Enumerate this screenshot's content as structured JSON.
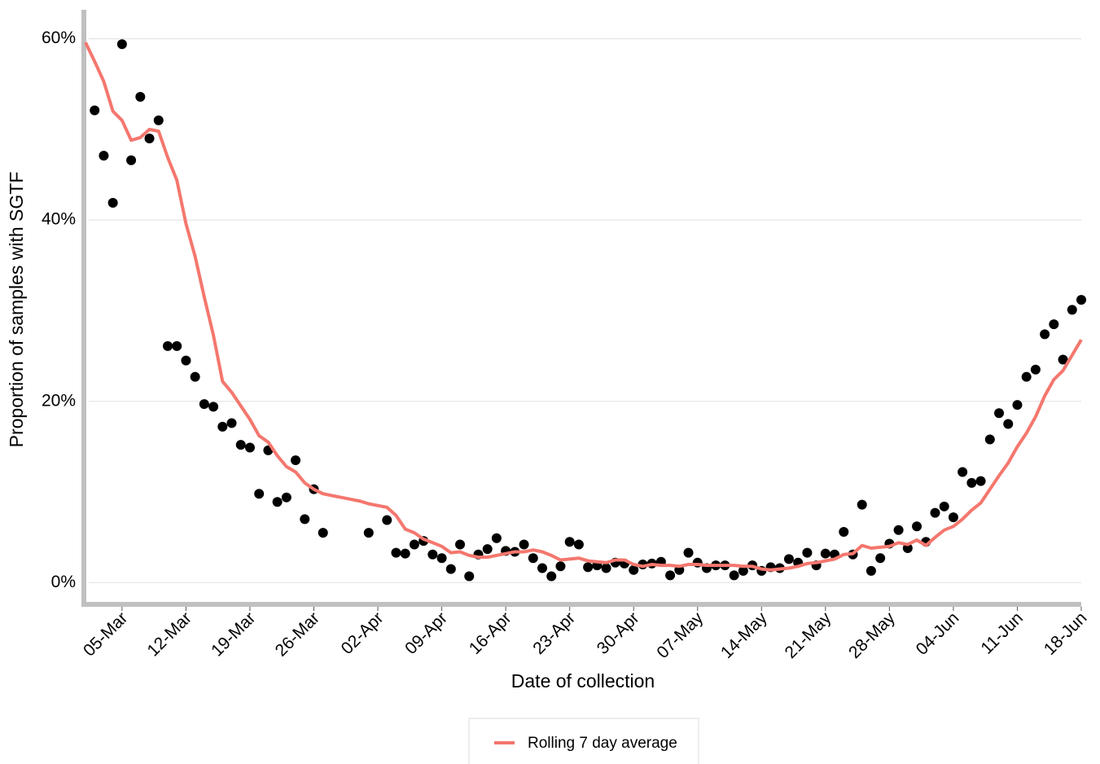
{
  "chart_data": {
    "type": "line",
    "ylabel": "Proportion of samples with SGTF",
    "xlabel": "Date of collection",
    "categories": [
      null,
      null,
      null,
      null,
      "05-Mar",
      null,
      null,
      null,
      null,
      null,
      null,
      "12-Mar",
      null,
      null,
      null,
      null,
      null,
      null,
      "19-Mar",
      null,
      null,
      null,
      null,
      null,
      null,
      "26-Mar",
      null,
      null,
      null,
      null,
      null,
      null,
      "02-Apr",
      null,
      null,
      null,
      null,
      null,
      null,
      "09-Apr",
      null,
      null,
      null,
      null,
      null,
      null,
      "16-Apr",
      null,
      null,
      null,
      null,
      null,
      null,
      "23-Apr",
      null,
      null,
      null,
      null,
      null,
      null,
      "30-Apr",
      null,
      null,
      null,
      null,
      null,
      null,
      "07-May",
      null,
      null,
      null,
      null,
      null,
      null,
      "14-May",
      null,
      null,
      null,
      null,
      null,
      null,
      "21-May",
      null,
      null,
      null,
      null,
      null,
      null,
      "28-May",
      null,
      null,
      null,
      null,
      null,
      null,
      "04-Jun",
      null,
      null,
      null,
      null,
      null,
      null,
      "11-Jun",
      null,
      null,
      null,
      null,
      null,
      null,
      "18-Jun"
    ],
    "series": [
      {
        "type": "scatter",
        "color": "#000000",
        "values": [
          null,
          52.1,
          47.1,
          41.9,
          59.4,
          46.6,
          53.6,
          49.0,
          51.0,
          26.1,
          26.1,
          24.5,
          22.7,
          19.7,
          19.4,
          17.2,
          17.6,
          15.2,
          14.9,
          9.8,
          14.6,
          8.9,
          9.4,
          13.5,
          7.0,
          10.3,
          5.5,
          null,
          null,
          null,
          null,
          5.5,
          null,
          6.9,
          3.3,
          3.2,
          4.2,
          4.6,
          3.1,
          2.7,
          1.5,
          4.2,
          0.7,
          3.1,
          3.7,
          4.9,
          3.5,
          3.4,
          4.2,
          2.7,
          1.6,
          0.7,
          1.8,
          4.5,
          4.2,
          1.7,
          1.9,
          1.6,
          2.2,
          2.1,
          1.4,
          2.0,
          2.1,
          2.3,
          0.8,
          1.4,
          3.3,
          2.2,
          1.6,
          1.9,
          1.9,
          0.8,
          1.3,
          1.9,
          1.3,
          1.7,
          1.6,
          2.6,
          2.2,
          3.3,
          1.9,
          3.2,
          3.1,
          5.6,
          3.1,
          8.6,
          1.3,
          2.7,
          4.3,
          5.8,
          3.8,
          6.2,
          4.5,
          7.7,
          8.4,
          7.2,
          12.2,
          11.0,
          11.2,
          15.8,
          18.7,
          17.5,
          19.6,
          22.7,
          23.5,
          27.4,
          28.5,
          24.6,
          30.1,
          31.2
        ]
      },
      {
        "type": "line",
        "name": "Rolling 7 day average",
        "color": "#f4776e",
        "values": [
          59.6,
          57.5,
          55.3,
          52.0,
          51.0,
          48.8,
          49.1,
          50.0,
          49.8,
          46.9,
          44.4,
          39.6,
          36.0,
          31.5,
          27.3,
          22.2,
          21.0,
          19.5,
          18.0,
          16.2,
          15.5,
          14.0,
          12.8,
          12.2,
          11.0,
          10.3,
          9.8,
          9.6,
          9.4,
          9.2,
          9.0,
          8.7,
          8.5,
          8.3,
          7.4,
          5.9,
          5.5,
          4.8,
          4.4,
          4.0,
          3.3,
          3.4,
          3.0,
          2.8,
          2.8,
          3.0,
          3.2,
          3.4,
          3.4,
          3.6,
          3.4,
          3.0,
          2.5,
          2.6,
          2.7,
          2.4,
          2.3,
          2.2,
          2.5,
          2.5,
          2.0,
          1.8,
          2.0,
          1.9,
          1.9,
          1.8,
          2.0,
          2.0,
          1.9,
          1.9,
          1.9,
          1.9,
          1.8,
          1.8,
          1.5,
          1.4,
          1.5,
          1.6,
          1.8,
          2.1,
          2.2,
          2.4,
          2.6,
          3.1,
          3.2,
          4.1,
          3.8,
          3.9,
          4.0,
          4.4,
          4.2,
          4.7,
          4.1,
          5.0,
          5.8,
          6.2,
          7.0,
          8.0,
          8.8,
          10.3,
          11.8,
          13.2,
          15.0,
          16.5,
          18.3,
          20.6,
          22.4,
          23.4,
          25.1,
          26.8
        ]
      }
    ],
    "ylim": [
      -2.4,
      63.2
    ],
    "yticks": [
      {
        "value": 0,
        "label": "0%"
      },
      {
        "value": 20,
        "label": "20%"
      },
      {
        "value": 40,
        "label": "40%"
      },
      {
        "value": 60,
        "label": "60%"
      }
    ],
    "grid": true
  }
}
